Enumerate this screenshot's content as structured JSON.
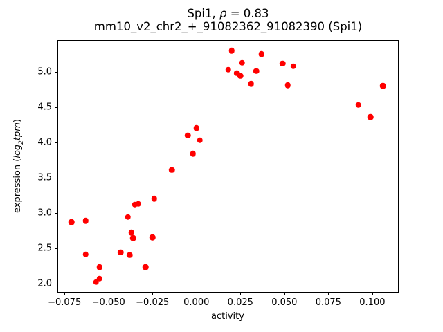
{
  "title": {
    "line1_pre": "Spi1, ",
    "line1_rho": "ρ",
    "line1_post": " = 0.83",
    "line2": "mm10_v2_chr2_+_91082362_91082390 (Spi1)"
  },
  "axes": {
    "xlabel": "activity",
    "ylabel_pre": "expression (",
    "ylabel_log": "log",
    "ylabel_sub": "2",
    "ylabel_tpm": "tpm",
    "ylabel_close": ")"
  },
  "chart_data": {
    "type": "scatter",
    "title": "Spi1, ρ = 0.83",
    "subtitle": "mm10_v2_chr2_+_91082362_91082390 (Spi1)",
    "xlabel": "activity",
    "ylabel": "expression (log2 tpm)",
    "grid": false,
    "legend": null,
    "marker_color": "#ff0000",
    "marker_diameter_px": 8.5,
    "xlim": [
      -0.079,
      0.115
    ],
    "ylim": [
      1.87,
      5.45
    ],
    "xticks": [
      -0.075,
      -0.05,
      -0.025,
      0,
      0.025,
      0.05,
      0.075,
      0.1
    ],
    "xtick_labels": [
      "−0.075",
      "−0.050",
      "−0.025",
      "0.000",
      "0.025",
      "0.050",
      "0.075",
      "0.100"
    ],
    "yticks": [
      2.0,
      2.5,
      3.0,
      3.5,
      4.0,
      4.5,
      5.0
    ],
    "ytick_labels": [
      "2.0",
      "2.5",
      "3.0",
      "3.5",
      "4.0",
      "4.5",
      "5.0"
    ],
    "points": [
      [
        -0.071,
        2.87
      ],
      [
        -0.063,
        2.89
      ],
      [
        -0.063,
        2.41
      ],
      [
        -0.057,
        2.02
      ],
      [
        -0.055,
        2.07
      ],
      [
        -0.055,
        2.23
      ],
      [
        -0.043,
        2.44
      ],
      [
        -0.039,
        2.94
      ],
      [
        -0.038,
        2.4
      ],
      [
        -0.037,
        2.72
      ],
      [
        -0.036,
        2.64
      ],
      [
        -0.035,
        3.12
      ],
      [
        -0.033,
        3.13
      ],
      [
        -0.029,
        2.23
      ],
      [
        -0.025,
        2.65
      ],
      [
        -0.024,
        3.2
      ],
      [
        -0.014,
        3.61
      ],
      [
        -0.005,
        4.1
      ],
      [
        -0.002,
        3.84
      ],
      [
        0.0,
        4.2
      ],
      [
        0.002,
        4.03
      ],
      [
        0.018,
        5.03
      ],
      [
        0.02,
        5.3
      ],
      [
        0.023,
        4.98
      ],
      [
        0.025,
        4.94
      ],
      [
        0.026,
        5.13
      ],
      [
        0.031,
        4.83
      ],
      [
        0.034,
        5.01
      ],
      [
        0.037,
        5.25
      ],
      [
        0.049,
        5.12
      ],
      [
        0.052,
        4.81
      ],
      [
        0.055,
        5.08
      ],
      [
        0.092,
        4.53
      ],
      [
        0.099,
        4.36
      ],
      [
        0.106,
        4.8
      ]
    ]
  }
}
